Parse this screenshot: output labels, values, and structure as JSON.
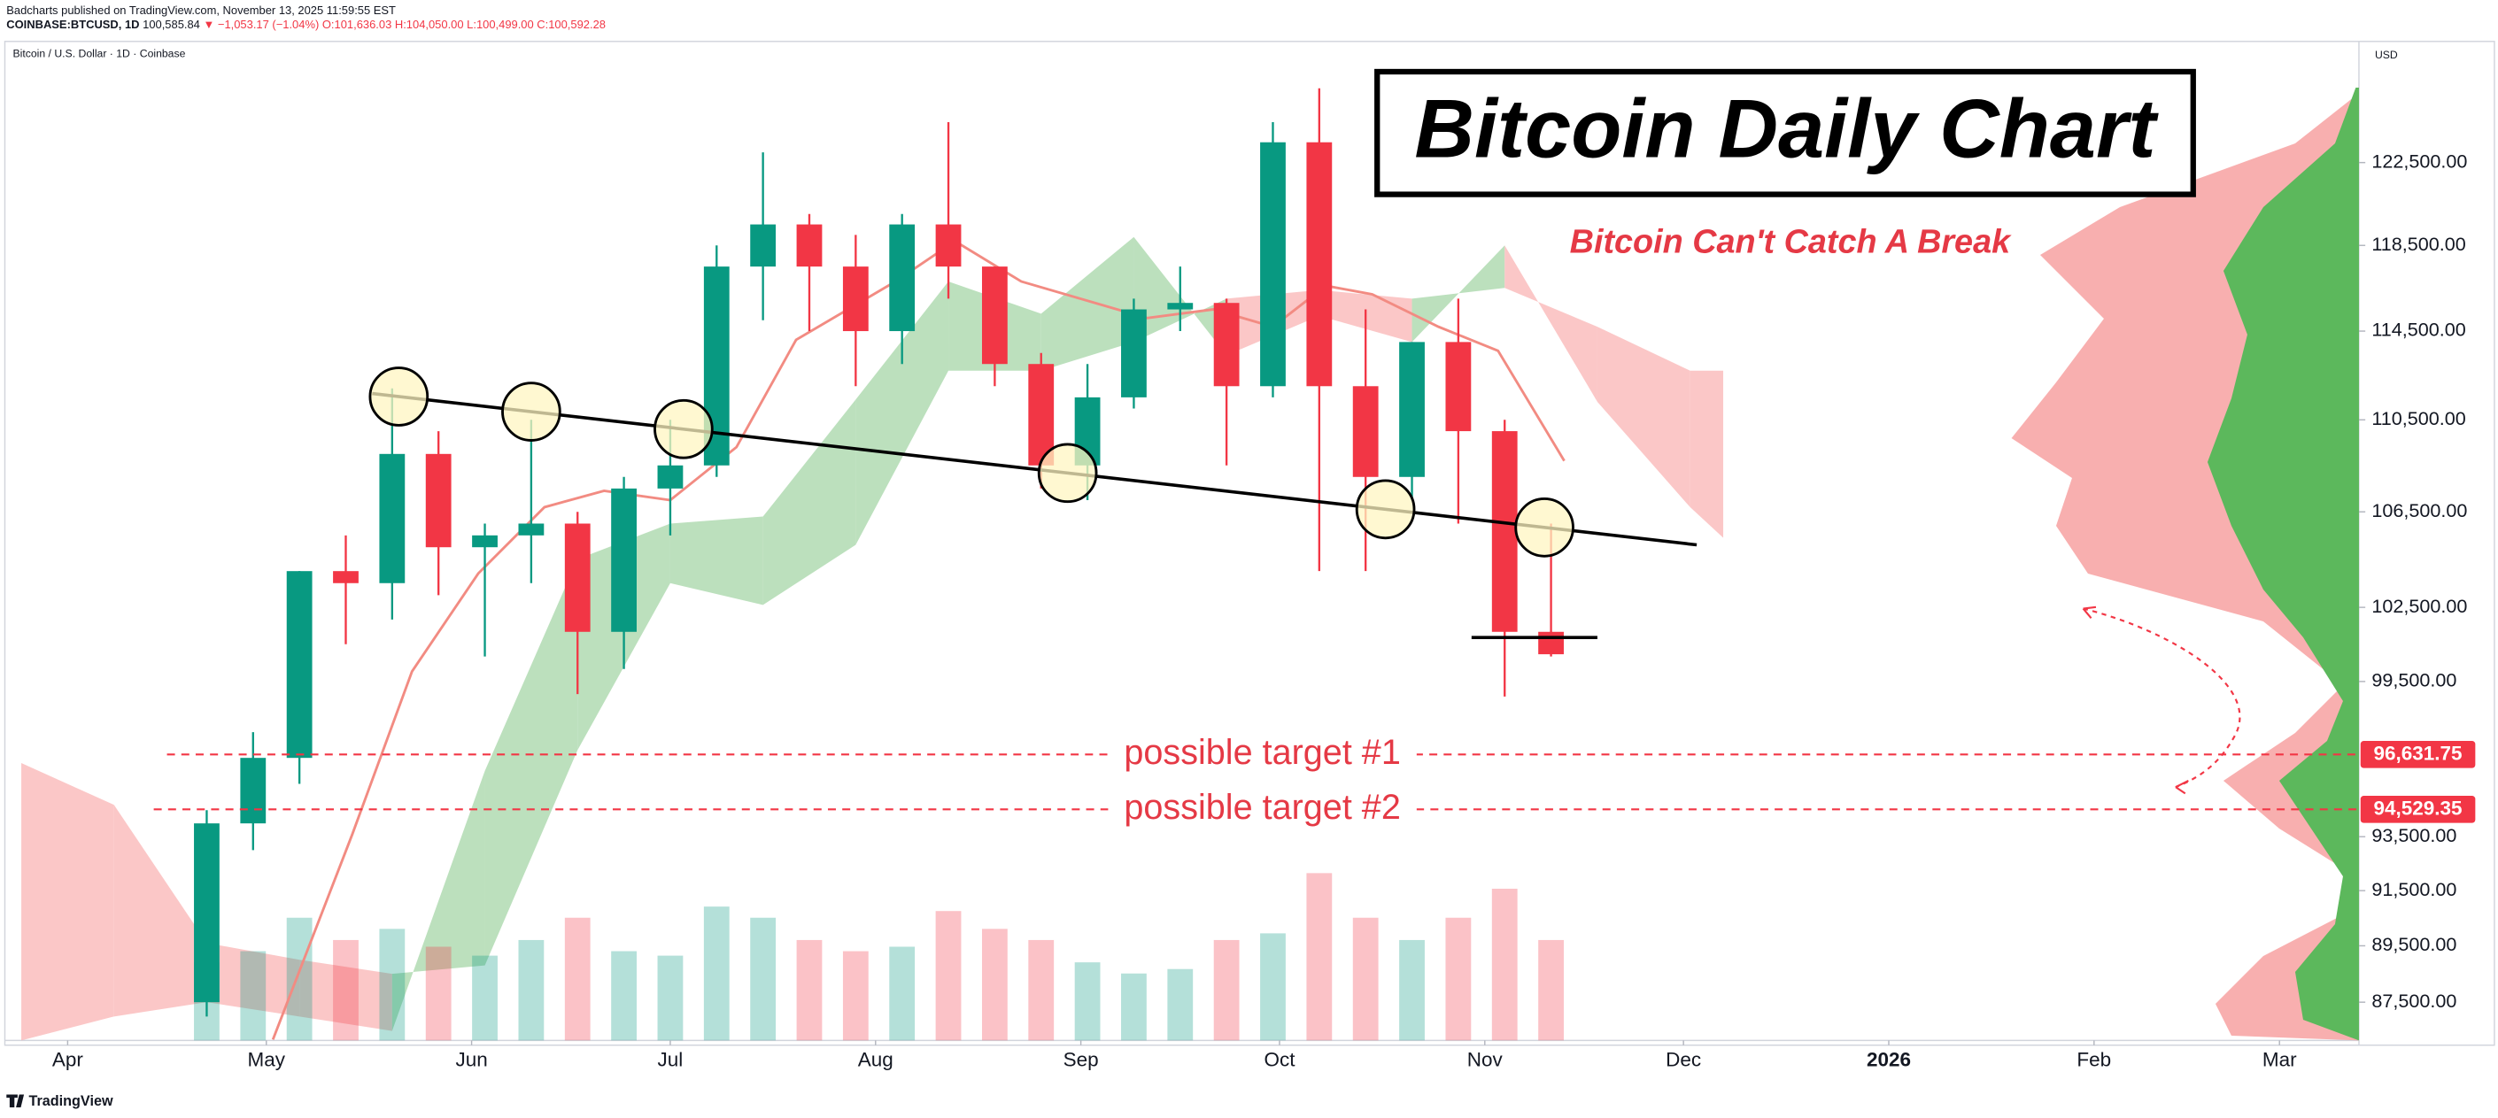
{
  "header": {
    "publisher": "Badcharts published on TradingView.com, November 13, 2025 11:59:55 EST",
    "symbol": "COINBASE:BTCUSD, 1D",
    "price": "100,585.84",
    "change": "▼ −1,053.17 (−1.04%)",
    "ohlc": "O:101,636.03 H:104,050.00 L:100,499.00 C:100,592.28"
  },
  "chart_data": {
    "type": "candlestick",
    "title": "Bitcoin Daily Chart",
    "subtitle": "Bitcoin Can't Catch A Break",
    "legend_title": "Bitcoin / U.S. Dollar · 1D · Coinbase",
    "y_axis_unit": "USD",
    "log_scale": true,
    "grid": false,
    "xlim": [
      82,
      437
    ],
    "ylim": [
      86170,
      128430
    ],
    "xticks": [
      {
        "value": 91,
        "label": "Apr"
      },
      {
        "value": 121,
        "label": "May"
      },
      {
        "value": 152,
        "label": "Jun"
      },
      {
        "value": 182,
        "label": "Jul"
      },
      {
        "value": 213,
        "label": "Aug"
      },
      {
        "value": 244,
        "label": "Sep"
      },
      {
        "value": 274,
        "label": "Oct"
      },
      {
        "value": 305,
        "label": "Nov"
      },
      {
        "value": 335,
        "label": "Dec"
      },
      {
        "value": 366,
        "label": "2026"
      },
      {
        "value": 397,
        "label": "Feb"
      },
      {
        "value": 425,
        "label": "Mar"
      }
    ],
    "yticks": [
      {
        "value": 87500,
        "label": "87,500.00"
      },
      {
        "value": 89500,
        "label": "89,500.00"
      },
      {
        "value": 91500,
        "label": "91,500.00"
      },
      {
        "value": 93500,
        "label": "93,500.00"
      },
      {
        "value": 99500,
        "label": "99,500.00"
      },
      {
        "value": 102500,
        "label": "102,500.00"
      },
      {
        "value": 106500,
        "label": "106,500.00"
      },
      {
        "value": 110500,
        "label": "110,500.00"
      },
      {
        "value": 114500,
        "label": "114,500.00"
      },
      {
        "value": 118500,
        "label": "118,500.00"
      },
      {
        "value": 122500,
        "label": "122,500.00"
      }
    ],
    "up_color": "#089981",
    "down_color": "#f23645",
    "x": [
      112,
      119,
      126,
      133,
      140,
      147,
      154,
      161,
      168,
      175,
      182,
      189,
      196,
      203,
      210,
      217,
      224,
      231,
      238,
      245,
      252,
      259,
      266,
      273,
      280,
      287,
      294,
      301,
      308,
      315
    ],
    "open": [
      87500,
      94000,
      96500,
      104000,
      103500,
      109000,
      105000,
      105500,
      106000,
      101500,
      107500,
      108500,
      117500,
      119500,
      117500,
      114500,
      119500,
      117500,
      113000,
      108500,
      111500,
      115500,
      115800,
      112000,
      123500,
      112000,
      108000,
      114000,
      110000,
      101500
    ],
    "high": [
      94500,
      97500,
      104000,
      105500,
      111900,
      110000,
      106000,
      110500,
      106500,
      108000,
      110500,
      118500,
      123000,
      120000,
      119000,
      120000,
      124500,
      117500,
      113500,
      113000,
      116000,
      117500,
      116000,
      124500,
      126200,
      115500,
      114000,
      116000,
      110500,
      106000
    ],
    "low": [
      87000,
      93000,
      95500,
      101000,
      102000,
      103000,
      100500,
      103500,
      99000,
      100000,
      105500,
      108000,
      115000,
      114500,
      112000,
      113000,
      116000,
      112000,
      107500,
      107000,
      111000,
      114500,
      108500,
      111500,
      104000,
      104000,
      107000,
      106000,
      98900,
      100500
    ],
    "close": [
      94000,
      96500,
      104000,
      103500,
      109000,
      105000,
      105500,
      106000,
      101500,
      107500,
      108500,
      117500,
      119500,
      117500,
      114500,
      119500,
      117500,
      113000,
      108500,
      111500,
      115500,
      115800,
      112000,
      123500,
      112000,
      108000,
      114000,
      110000,
      101500,
      100592.28
    ],
    "volume": [
      35,
      40,
      55,
      45,
      50,
      42,
      38,
      45,
      55,
      40,
      38,
      60,
      55,
      45,
      40,
      42,
      58,
      50,
      45,
      35,
      30,
      32,
      45,
      48,
      75,
      55,
      45,
      55,
      68,
      45
    ],
    "moving_average": {
      "color": "#f28b82",
      "x": [
        122,
        134,
        143,
        153,
        163,
        172,
        182,
        192,
        201,
        216,
        225,
        235,
        245,
        254,
        264,
        273,
        281,
        288,
        298,
        307,
        317
      ],
      "values": [
        86200,
        93600,
        99900,
        103900,
        106700,
        107400,
        107000,
        109300,
        114100,
        116800,
        118700,
        116800,
        115900,
        115100,
        115500,
        114700,
        116600,
        116200,
        114700,
        113600,
        108700
      ]
    },
    "cloud": {
      "up_color": "#a5d6a7",
      "down_color": "#f9b4b4",
      "x": [
        84,
        98,
        112,
        126,
        140,
        154,
        168,
        182,
        196,
        210,
        224,
        238,
        252,
        266,
        280,
        294,
        308,
        322,
        336,
        341
      ],
      "span_a": [
        86000,
        87000,
        87500,
        87000,
        86500,
        96000,
        104500,
        106000,
        106300,
        111400,
        116800,
        115300,
        118900,
        113400,
        115200,
        114000,
        118500,
        111300,
        106700,
        105400
      ],
      "span_b": [
        96300,
        94700,
        89600,
        89000,
        88500,
        88800,
        96800,
        103500,
        102600,
        105100,
        112700,
        112700,
        114000,
        116000,
        116400,
        116000,
        116500,
        114700,
        112700,
        112700
      ]
    },
    "trendline": {
      "x": [
        137,
        337
      ],
      "values": [
        111670,
        105100
      ]
    },
    "touches": {
      "x": [
        141,
        161,
        184,
        242,
        290,
        314
      ]
    },
    "support": {
      "x": [
        303,
        322
      ],
      "values": [
        101270,
        101270
      ]
    },
    "targets": [
      {
        "label": "possible target #1",
        "value": 96631.75,
        "price_label": "96,631.75",
        "x_start": 106
      },
      {
        "label": "possible target #2",
        "value": 94529.35,
        "price_label": "94,529.35",
        "x_start": 104
      }
    ]
  },
  "footer": {
    "brand": "TradingView"
  }
}
